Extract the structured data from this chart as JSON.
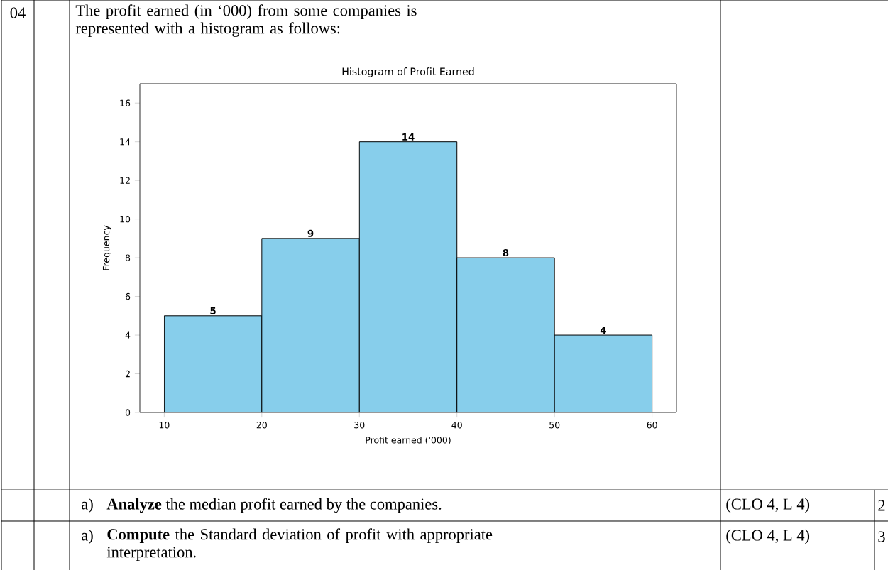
{
  "chart_data": {
    "type": "histogram",
    "title": "Histogram of Profit Earned",
    "xlabel": "Profit earned ('000)",
    "ylabel": "Frequency",
    "bins": [
      10,
      20,
      30,
      40,
      50,
      60
    ],
    "values": [
      5,
      9,
      14,
      8,
      4
    ],
    "color": "#87ceeb",
    "data_labels": true,
    "xlim": [
      7.5,
      62.5
    ],
    "ylim": [
      0,
      17
    ],
    "xticks": [
      10,
      20,
      30,
      40,
      50,
      60
    ],
    "yticks": [
      0,
      2,
      4,
      6,
      8,
      10,
      12,
      14,
      16
    ],
    "grid": false,
    "annotations": [
      "04",
      "The profit earned (in ‘000) from some companies is represented with a histogram as follows:",
      "a)",
      "**Analyze** the median profit earned by the companies.",
      "(CLO 4, L 4)",
      "2",
      "a)",
      "**Compute** the Standard deviation of profit with appropriate interpretation.",
      "(CLO 4, L 4)",
      "3"
    ]
  }
}
